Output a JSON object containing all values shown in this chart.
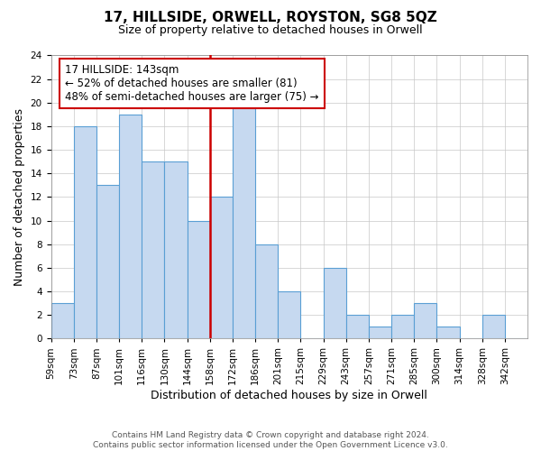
{
  "title": "17, HILLSIDE, ORWELL, ROYSTON, SG8 5QZ",
  "subtitle": "Size of property relative to detached houses in Orwell",
  "xlabel": "Distribution of detached houses by size in Orwell",
  "ylabel": "Number of detached properties",
  "bin_labels": [
    "59sqm",
    "73sqm",
    "87sqm",
    "101sqm",
    "116sqm",
    "130sqm",
    "144sqm",
    "158sqm",
    "172sqm",
    "186sqm",
    "201sqm",
    "215sqm",
    "229sqm",
    "243sqm",
    "257sqm",
    "271sqm",
    "285sqm",
    "300sqm",
    "314sqm",
    "328sqm",
    "342sqm"
  ],
  "bar_heights": [
    3,
    18,
    13,
    19,
    15,
    15,
    10,
    12,
    20,
    8,
    4,
    0,
    6,
    2,
    1,
    2,
    3,
    1,
    0,
    2,
    0
  ],
  "bar_color": "#c6d9f0",
  "bar_edge_color": "#5a9fd4",
  "reference_bin_index": 6,
  "reference_line_color": "#cc0000",
  "ylim": [
    0,
    24
  ],
  "yticks": [
    0,
    2,
    4,
    6,
    8,
    10,
    12,
    14,
    16,
    18,
    20,
    22,
    24
  ],
  "annotation_text": "17 HILLSIDE: 143sqm\n← 52% of detached houses are smaller (81)\n48% of semi-detached houses are larger (75) →",
  "annotation_box_facecolor": "#ffffff",
  "annotation_box_edgecolor": "#cc0000",
  "footer_line1": "Contains HM Land Registry data © Crown copyright and database right 2024.",
  "footer_line2": "Contains public sector information licensed under the Open Government Licence v3.0.",
  "background_color": "#ffffff",
  "grid_color": "#c8c8c8",
  "title_fontsize": 11,
  "subtitle_fontsize": 9,
  "axis_label_fontsize": 9,
  "tick_fontsize": 7.5,
  "annotation_fontsize": 8.5,
  "footer_fontsize": 6.5
}
